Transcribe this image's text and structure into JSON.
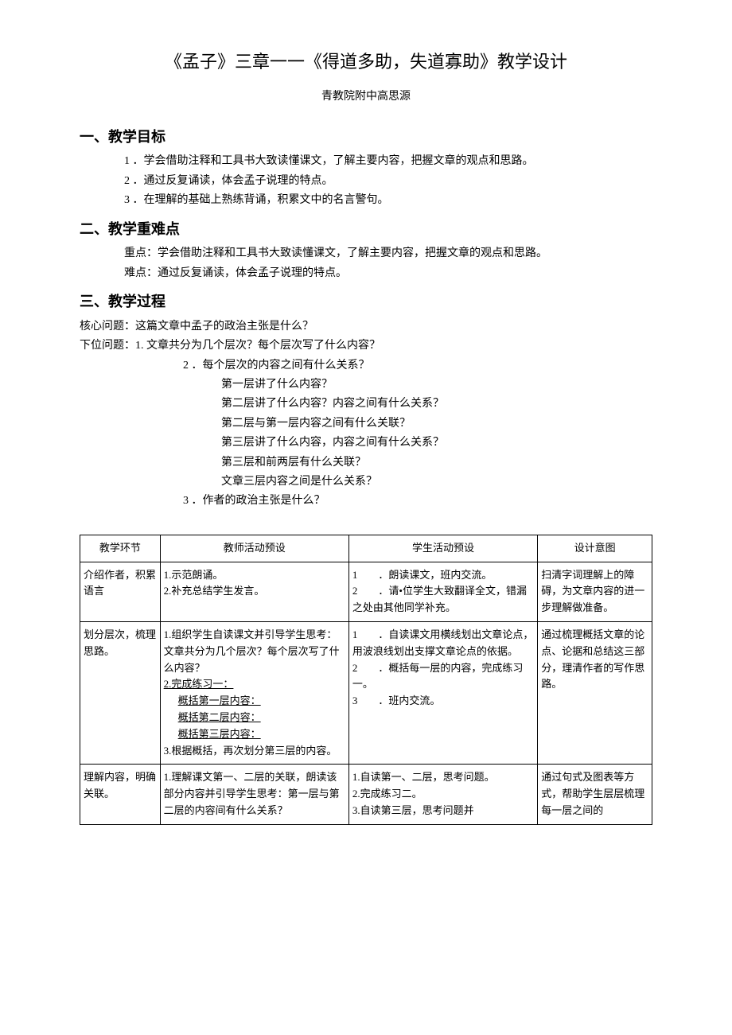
{
  "title": "《孟子》三章一一《得道多助，失道寡助》教学设计",
  "subtitle": "青教院附中高思源",
  "sections": {
    "s1": {
      "heading": "一、教学目标",
      "items": [
        "1 ．学会借助注释和工具书大致读懂课文，了解主要内容，把握文章的观点和思路。",
        "2 ．通过反复诵读，体会孟子说理的特点。",
        "3 ．在理解的基础上熟练背诵，积累文中的名言警句。"
      ]
    },
    "s2": {
      "heading": "二、教学重难点",
      "items": [
        "重点：学会借助注释和工具书大致读懂课文，了解主要内容，把握文章的观点和思路。",
        "难点：通过反复诵读，体会孟子说理的特点。"
      ]
    },
    "s3": {
      "heading": "三、教学过程",
      "core": "核心问题：这篇文章中孟子的政治主张是什么？",
      "sub": "下位问题：1. 文章共分为几个层次？每个层次写了什么内容？",
      "q2lead": "2 ．每个层次的内容之间有什么关系？",
      "q2lines": [
        "第一层讲了什么内容？",
        "第二层讲了什么内容？内容之间有什么关系？",
        "第二层与第一层内容之间有什么关联？",
        "第三层讲了什么内容，内容之间有什么关系？",
        "第三层和前两层有什么关联？",
        "文章三层内容之间是什么关系？"
      ],
      "q3": "3 ．作者的政治主张是什么？"
    }
  },
  "table": {
    "headers": [
      "教学环节",
      "教师活动预设",
      "学生活动预设",
      "设计意图"
    ],
    "rows": [
      {
        "c1": "介绍作者，积累语言",
        "c2": [
          "1.示范朗诵。",
          "2.补充总结学生发言。"
        ],
        "c3": [
          "1  ．朗读课文，班内交流。",
          "2  ．请•位学生大致翻译全文，错漏之处由其他同学补充。"
        ],
        "c4": "扫清字词理解上的障碍，为文章内容的进一步理解做准备。"
      },
      {
        "c1": "划分层次，梳理思路。",
        "c2": [
          "1.组织学生自读课文并引导学生思考：文章共分为几个层次？每个层次写了什么内容？",
          {
            "text": "2.完成练习一：",
            "u": true
          },
          {
            "text": "概括第一层内容：",
            "u": true,
            "indent": true
          },
          {
            "text": "概括第二层内容：",
            "u": true,
            "indent": true
          },
          {
            "text": "概括第三层内容：",
            "u": true,
            "indent": true
          },
          "3.根据概括，再次划分第三层的内容。"
        ],
        "c3": [
          "1  ．自读课文用横线划出文章论点，用波浪线划出支撑文章论点的依据。",
          "2  ．概括每一层的内容，完成练习一。",
          "3  ．班内交流。"
        ],
        "c4": "通过梳理概括文章的论点、论据和总结这三部分，理清作者的写作思路。"
      },
      {
        "c1": "理解内容，明确关联。",
        "c2": [
          "1.理解课文第一、二层的关联，朗读该部分内容并引导学生思考：第一层与第二层的内容间有什么关系？"
        ],
        "c3": [
          "1.自读第一、二层，思考问题。",
          "2.完成练习二。",
          "3.自读第三层，思考问题并"
        ],
        "c4": "通过句式及图表等方式，帮助学生层层梳理每一层之间的"
      }
    ]
  }
}
